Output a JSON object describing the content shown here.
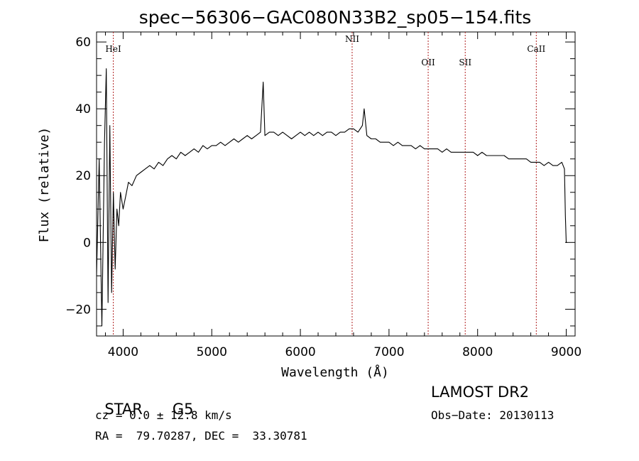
{
  "chart_data": {
    "type": "line",
    "title": "spec−56306−GAC080N33B2_sp05−154.fits",
    "xlabel": "Wavelength (Å)",
    "ylabel": "Flux (relative)",
    "xlim": [
      3700,
      9100
    ],
    "ylim": [
      -28,
      63
    ],
    "x_ticks": [
      4000,
      5000,
      6000,
      7000,
      8000,
      9000
    ],
    "x_tick_labels": [
      "4000",
      "5000",
      "6000",
      "7000",
      "8000",
      "9000"
    ],
    "y_ticks": [
      -20,
      0,
      20,
      40,
      60
    ],
    "y_tick_labels": [
      "−20",
      "0",
      "20",
      "40",
      "60"
    ],
    "grid": false,
    "series": [
      {
        "color": "#000000",
        "x": [
          3700,
          3730,
          3760,
          3790,
          3810,
          3830,
          3850,
          3870,
          3890,
          3910,
          3930,
          3950,
          3970,
          4000,
          4030,
          4060,
          4100,
          4150,
          4200,
          4250,
          4300,
          4350,
          4400,
          4450,
          4500,
          4550,
          4600,
          4650,
          4700,
          4750,
          4800,
          4850,
          4900,
          4950,
          5000,
          5050,
          5100,
          5150,
          5200,
          5250,
          5300,
          5350,
          5400,
          5450,
          5500,
          5550,
          5580,
          5600,
          5650,
          5700,
          5750,
          5800,
          5850,
          5900,
          5950,
          6000,
          6050,
          6100,
          6150,
          6200,
          6250,
          6300,
          6350,
          6400,
          6450,
          6500,
          6550,
          6600,
          6650,
          6700,
          6720,
          6750,
          6800,
          6850,
          6900,
          6950,
          7000,
          7050,
          7100,
          7150,
          7200,
          7250,
          7300,
          7350,
          7400,
          7450,
          7500,
          7550,
          7600,
          7650,
          7700,
          7750,
          7800,
          7850,
          7900,
          7950,
          8000,
          8050,
          8100,
          8150,
          8200,
          8250,
          8300,
          8350,
          8400,
          8450,
          8500,
          8550,
          8600,
          8650,
          8700,
          8750,
          8800,
          8850,
          8900,
          8950,
          8980,
          8990,
          9000,
          9010
        ],
        "y": [
          -10,
          25,
          -25,
          30,
          52,
          -18,
          35,
          -15,
          15,
          -8,
          10,
          5,
          15,
          10,
          14,
          18,
          17,
          20,
          21,
          22,
          23,
          22,
          24,
          23,
          25,
          26,
          25,
          27,
          26,
          27,
          28,
          27,
          29,
          28,
          29,
          29,
          30,
          29,
          30,
          31,
          30,
          31,
          32,
          31,
          32,
          33,
          48,
          32,
          33,
          33,
          32,
          33,
          32,
          31,
          32,
          33,
          32,
          33,
          32,
          33,
          32,
          33,
          33,
          32,
          33,
          33,
          34,
          34,
          33,
          35,
          40,
          32,
          31,
          31,
          30,
          30,
          30,
          29,
          30,
          29,
          29,
          29,
          28,
          29,
          28,
          28,
          28,
          28,
          27,
          28,
          27,
          27,
          27,
          27,
          27,
          27,
          26,
          27,
          26,
          26,
          26,
          26,
          26,
          25,
          25,
          25,
          25,
          25,
          24,
          24,
          24,
          23,
          24,
          23,
          23,
          24,
          22,
          8,
          0,
          0
        ]
      }
    ],
    "annotations": [
      {
        "label": "HeI",
        "x": 3889,
        "label_y": 57
      },
      {
        "label": "NII",
        "x": 6584,
        "label_y": 60
      },
      {
        "label": "OII",
        "x": 7442,
        "label_y": 53
      },
      {
        "label": "SII",
        "x": 7860,
        "label_y": 53
      },
      {
        "label": "CaII",
        "x": 8662,
        "label_y": 57
      }
    ]
  },
  "footer": {
    "left_row1_type": "STAR",
    "left_row1_subclass": "G5",
    "cz": "cz = 0.0 ± 12.8 km/s",
    "radec": "RA =  79.70287, DEC =  33.30781",
    "release": "LAMOST DR2",
    "obs_date": "Obs−Date: 20130113"
  },
  "colors": {
    "axes": "#000000",
    "line_markers": "#b02020"
  }
}
